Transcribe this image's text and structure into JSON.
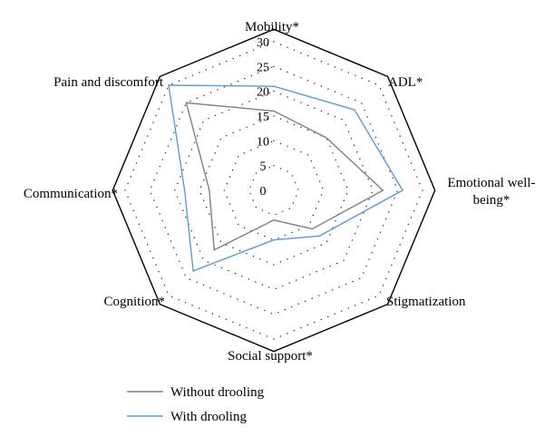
{
  "chart_data": {
    "type": "radar",
    "axes": [
      "Mobility*",
      "ADL*",
      "Emotional well-being*",
      "Stigmatization",
      "Social support*",
      "Cognition*",
      "Communication*",
      "Pain and discomfort"
    ],
    "axis_label_lines": [
      [
        "Mobility*"
      ],
      [
        "ADL*"
      ],
      [
        "Emotional well-",
        "being*"
      ],
      [
        "Stigmatization"
      ],
      [
        "Social support*"
      ],
      [
        "Cognition*"
      ],
      [
        "Communication*"
      ],
      [
        "Pain and discomfort"
      ]
    ],
    "r_ticks": [
      "0",
      "5",
      "10",
      "15",
      "20",
      "25",
      "30"
    ],
    "r_range": [
      0,
      30
    ],
    "grid": "dotted",
    "series": [
      {
        "name": "Without drooling",
        "color": "#808080",
        "values": [
          16,
          15,
          22,
          11,
          6,
          17,
          13,
          25
        ]
      },
      {
        "name": "With drooling",
        "color": "#5b9bd5",
        "values": [
          21,
          23,
          26,
          13,
          10,
          23,
          18,
          30
        ]
      }
    ],
    "legend_position": "bottom-left"
  }
}
